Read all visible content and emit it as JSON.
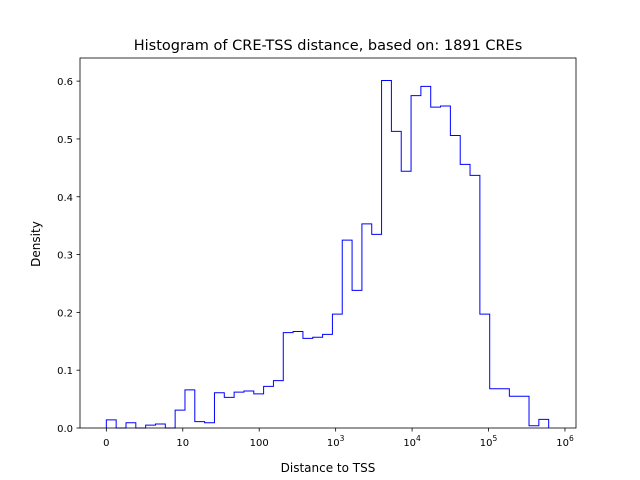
{
  "chart_data": {
    "type": "histogram",
    "title": "Histogram of CRE-TSS distance, based on: 1891 CREs",
    "xlabel": "Distance to TSS",
    "ylabel": "Density",
    "x_scale": "symlog",
    "x_tick_labels": [
      {
        "value": 0,
        "base": "0",
        "exp": ""
      },
      {
        "value": 10,
        "base": "10",
        "exp": ""
      },
      {
        "value": 100,
        "base": "100",
        "exp": ""
      },
      {
        "value": 1000,
        "base": "10",
        "exp": "3"
      },
      {
        "value": 10000,
        "base": "10",
        "exp": "4"
      },
      {
        "value": 100000,
        "base": "10",
        "exp": "5"
      },
      {
        "value": 1000000,
        "base": "10",
        "exp": "6"
      }
    ],
    "y_ticks": [
      0.0,
      0.1,
      0.2,
      0.3,
      0.4,
      0.5,
      0.6
    ],
    "y_tick_labels": [
      "0.0",
      "0.1",
      "0.2",
      "0.3",
      "0.4",
      "0.5",
      "0.6"
    ],
    "ylim": [
      0,
      0.64
    ],
    "grid": false,
    "line_color": "#0000ff",
    "bins_decades": [
      0,
      0.1286,
      0.2572,
      0.3858,
      0.5144,
      0.643,
      0.7716,
      0.9002,
      1.0288,
      1.1574,
      1.286,
      1.4146,
      1.5432,
      1.6718,
      1.8004,
      1.929,
      2.0576,
      2.1862,
      2.3148,
      2.4434,
      2.572,
      2.7006,
      2.8292,
      2.9578,
      3.0864,
      3.215,
      3.3436,
      3.4722,
      3.6008,
      3.7294,
      3.858,
      3.9866,
      4.1152,
      4.2438,
      4.3724,
      4.501,
      4.6296,
      4.7582,
      4.8868,
      5.0154,
      5.144,
      5.2726,
      5.4012,
      5.5298,
      5.6584,
      5.787
    ],
    "densities": [
      0.014,
      0.0,
      0.009,
      0.0,
      0.005,
      0.007,
      0.0,
      0.031,
      0.066,
      0.011,
      0.009,
      0.061,
      0.053,
      0.062,
      0.064,
      0.059,
      0.072,
      0.082,
      0.165,
      0.167,
      0.155,
      0.157,
      0.162,
      0.197,
      0.325,
      0.238,
      0.353,
      0.335,
      0.601,
      0.513,
      0.444,
      0.575,
      0.591,
      0.555,
      0.557,
      0.506,
      0.456,
      0.437,
      0.197,
      0.068,
      0.068,
      0.055,
      0.055,
      0.004,
      0.015
    ]
  }
}
